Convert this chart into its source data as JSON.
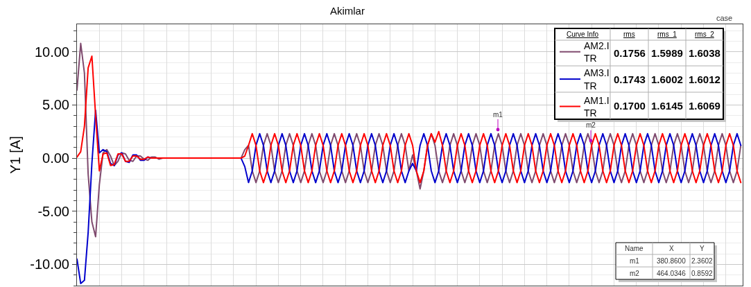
{
  "chart_data": {
    "type": "line",
    "title": "Akimlar",
    "ylabel": "Y1 [A]",
    "categories": [
      null,
      null,
      null,
      null,
      null,
      null,
      null,
      null,
      null,
      null,
      null,
      null,
      null,
      null,
      null,
      null,
      null,
      null,
      null,
      null,
      null,
      null,
      null,
      null,
      null,
      null,
      null,
      null,
      null,
      null,
      null,
      null,
      null,
      null,
      null,
      null,
      null,
      null,
      null,
      null,
      null,
      null,
      null,
      null,
      null,
      null,
      null,
      null,
      null,
      null,
      null,
      null,
      null,
      null,
      null,
      null,
      null,
      null,
      null,
      null,
      null,
      null,
      null,
      null,
      null,
      null,
      null,
      null,
      null,
      null,
      null,
      null,
      null,
      null,
      null,
      null,
      null,
      null,
      null,
      null,
      null,
      null,
      null,
      null,
      null,
      null,
      null,
      null,
      null,
      null,
      null,
      null,
      null,
      null,
      null,
      null,
      null,
      null,
      null,
      null,
      null,
      null,
      null,
      null,
      null,
      null,
      null,
      null,
      null,
      null,
      null,
      null,
      null,
      null,
      null,
      null,
      null,
      null,
      null,
      null,
      null,
      null,
      null,
      null,
      null,
      null,
      null,
      null,
      null,
      null,
      null,
      null,
      null,
      null,
      null,
      null,
      null,
      null,
      null,
      null,
      null,
      null,
      null,
      null,
      null,
      null,
      null,
      null,
      null,
      null,
      null,
      null,
      null,
      null,
      null,
      null,
      null,
      null,
      null,
      null,
      null,
      null,
      null,
      null,
      null,
      null,
      null,
      null,
      null,
      null,
      null,
      null,
      null,
      null,
      null,
      null,
      null,
      null,
      null
    ],
    "series": [
      {
        "name": "AM2.I\nTR",
        "color": "#7f4a6e",
        "values": [
          6.4,
          10.8,
          8.0,
          -1.5,
          -6.0,
          -7.4,
          -2.5,
          0.5,
          0.8,
          0.2,
          -0.7,
          -0.3,
          0.5,
          0.4,
          -0.2,
          -0.3,
          0.2,
          0.2,
          -0.1,
          -0.2,
          0.1,
          0.1,
          -0.1,
          0,
          0,
          0,
          0,
          0,
          0,
          0,
          0,
          0,
          0,
          0,
          0,
          0,
          0,
          0,
          0,
          0,
          0,
          0,
          0,
          0,
          0,
          0.8,
          1.2,
          -1.2,
          -2.3,
          -1.2,
          1.2,
          2.3,
          1.2,
          -1.2,
          -2.3,
          -1.2,
          1.2,
          2.3,
          1.2,
          -1.2,
          -2.3,
          -1.2,
          1.2,
          2.3,
          1.2,
          -1.2,
          -2.3,
          -1.2,
          1.2,
          2.3,
          1.2,
          -1.2,
          -2.3,
          -1.2,
          1.2,
          2.3,
          1.2,
          -1.2,
          -2.3,
          -1.2,
          1.2,
          2.3,
          1.2,
          -1.2,
          -2.3,
          -1.2,
          1.2,
          2.3,
          1.2,
          -1.2,
          0.3,
          -1.2,
          -2.9,
          -1.2,
          1.2,
          2.3,
          1.2,
          -1.2,
          -2.3,
          -1.2,
          1.2,
          2.3,
          1.2,
          -1.2,
          -2.3,
          -1.2,
          1.2,
          2.3,
          1.2,
          -1.2,
          -2.3,
          -1.2,
          1.2,
          2.3,
          1.2,
          -1.2,
          -2.3,
          -1.2,
          1.2,
          2.3,
          1.2,
          -1.2,
          -2.3,
          -1.2,
          1.2,
          2.3,
          1.2,
          -1.2,
          -2.3,
          -1.2,
          1.2,
          2.3,
          1.2,
          -1.2,
          -2.3,
          -1.2,
          1.2,
          2.3,
          1.2,
          -1.2,
          -2.3,
          -1.2,
          1.2,
          2.3,
          1.2,
          -1.2,
          -2.3,
          -1.2,
          1.2,
          2.3,
          1.2,
          -1.2,
          -2.3,
          -1.2,
          1.2,
          2.3,
          1.2,
          -1.2,
          -2.3,
          -1.2,
          1.2,
          2.3,
          1.2,
          -1.2,
          -2.3,
          -1.2,
          1.2,
          2.3,
          1.2,
          -1.2,
          -2.3,
          -1.2,
          1.2,
          2.3,
          1.2,
          -1.2,
          -2.3,
          -1.2,
          1.2
        ]
      },
      {
        "name": "AM3.I\nTR",
        "color": "#0000cc",
        "values": [
          -9.5,
          -11.8,
          -11.5,
          -7.0,
          -0.5,
          4.5,
          0.5,
          0.8,
          0.6,
          -0.5,
          -0.7,
          0.3,
          0.5,
          -0.3,
          -0.4,
          0.3,
          0.3,
          -0.2,
          -0.2,
          0.1,
          0,
          0,
          0,
          0,
          0,
          0,
          0,
          0,
          0,
          0,
          0,
          0,
          0,
          0,
          0,
          0,
          0,
          0,
          0,
          0,
          0,
          0,
          0,
          0,
          0,
          -0.8,
          -2.3,
          -1.2,
          1.2,
          2.3,
          1.2,
          -1.2,
          -2.3,
          -1.2,
          1.2,
          2.3,
          1.2,
          -1.2,
          -2.3,
          -1.2,
          1.2,
          2.3,
          1.2,
          -1.2,
          -2.3,
          -1.2,
          1.2,
          2.3,
          1.2,
          -1.2,
          -2.3,
          -1.2,
          1.2,
          2.3,
          1.2,
          -1.2,
          -2.3,
          -1.2,
          1.2,
          2.3,
          1.2,
          -1.2,
          -2.3,
          -1.2,
          1.2,
          2.3,
          1.2,
          -1.2,
          -2.3,
          -1.2,
          -0.5,
          -1.2,
          1.2,
          2.3,
          1.2,
          -1.2,
          -2.3,
          -1.2,
          1.2,
          2.3,
          1.2,
          -1.2,
          -2.3,
          -1.2,
          1.2,
          2.3,
          1.2,
          -1.2,
          -2.3,
          -1.2,
          1.2,
          2.3,
          1.2,
          -1.2,
          -2.3,
          -1.2,
          1.2,
          2.3,
          1.2,
          -1.2,
          -2.3,
          -1.2,
          1.2,
          2.3,
          1.2,
          -1.2,
          -2.3,
          -1.2,
          1.2,
          2.3,
          1.2,
          -1.2,
          -2.3,
          -1.2,
          1.2,
          2.3,
          1.2,
          -1.2,
          -2.3,
          -1.2,
          1.2,
          2.3,
          1.2,
          -1.2,
          -2.3,
          -1.2,
          1.2,
          2.3,
          1.2,
          -1.2,
          -2.3,
          -1.2,
          1.2,
          2.3,
          1.2,
          -1.2,
          -2.3,
          -1.2,
          1.2,
          2.3,
          1.2,
          -1.2,
          -2.3,
          -1.2,
          1.2,
          2.3,
          1.2,
          -1.2,
          -2.3,
          -1.2,
          1.2,
          2.3,
          1.2,
          -1.2,
          -2.3,
          -1.2,
          1.2,
          2.3,
          1.2
        ]
      },
      {
        "name": "AM1.I\nTR",
        "color": "#ff0000",
        "values": [
          0.1,
          0.6,
          3.0,
          8.5,
          9.6,
          4.0,
          -1.2,
          0.4,
          0.5,
          -0.7,
          -0.6,
          0.4,
          0.4,
          -0.3,
          -0.3,
          0.2,
          0.2,
          -0.1,
          -0.1,
          0.1,
          0,
          0,
          0,
          0,
          0,
          0,
          0,
          0,
          0,
          0,
          0,
          0,
          0,
          0,
          0,
          0,
          0,
          0,
          0,
          0,
          0,
          0,
          0,
          0,
          0,
          0.2,
          1.2,
          2.3,
          1.2,
          -1.2,
          -2.3,
          -1.2,
          1.2,
          2.3,
          1.2,
          -1.2,
          -2.3,
          -1.2,
          1.2,
          2.3,
          1.2,
          -1.2,
          -2.3,
          -1.2,
          1.2,
          2.3,
          1.2,
          -1.2,
          -2.3,
          -1.2,
          1.2,
          2.3,
          1.2,
          -1.2,
          -2.3,
          -1.2,
          1.2,
          2.3,
          1.2,
          -1.2,
          -2.3,
          -1.2,
          1.2,
          2.3,
          1.2,
          -1.2,
          -2.3,
          -1.2,
          1.2,
          2.3,
          1.2,
          -1.2,
          -2.3,
          -1.2,
          1.2,
          2.3,
          1.5,
          2.5,
          1.2,
          -1.2,
          -2.3,
          -1.2,
          1.2,
          2.3,
          1.2,
          -1.2,
          -2.3,
          -1.2,
          1.2,
          2.3,
          1.2,
          -1.2,
          -2.3,
          -1.2,
          1.2,
          2.3,
          1.2,
          -1.2,
          -2.3,
          -1.2,
          1.2,
          2.3,
          1.2,
          -1.2,
          -2.3,
          -1.2,
          1.2,
          2.3,
          1.2,
          -1.2,
          -2.3,
          -1.2,
          1.2,
          2.3,
          1.2,
          -1.2,
          -2.3,
          -1.2,
          1.2,
          2.3,
          1.2,
          -1.2,
          -2.3,
          -1.2,
          1.2,
          2.3,
          1.2,
          -1.2,
          -2.3,
          -1.2,
          1.2,
          2.3,
          1.2,
          -1.2,
          -2.3,
          -1.2,
          1.2,
          2.3,
          1.2,
          -1.2,
          -2.3,
          -1.2,
          1.2,
          2.3,
          1.2,
          -1.2,
          -2.3,
          -1.2,
          1.2,
          2.3,
          1.2,
          -1.2,
          -2.3,
          -1.2,
          1.2,
          2.3,
          1.2,
          -1.2,
          -2.3
        ]
      }
    ],
    "ylim": [
      -12,
      12.6
    ],
    "yticks": [
      {
        "value": -10,
        "label": "-10.00"
      },
      {
        "value": -5,
        "label": "-5.00"
      },
      {
        "value": 0,
        "label": "0.00"
      },
      {
        "value": 5,
        "label": "5.00"
      },
      {
        "value": 10,
        "label": "10.00"
      }
    ],
    "tick_labels": "y",
    "grid": true,
    "legend": "top right",
    "marker": "none",
    "line_style": "solid",
    "annotations": [
      "Curve Info",
      "rms",
      "rms_1",
      "rms_2",
      "0.1756",
      "1.5989",
      "1.6038",
      "0.1743",
      "1.6002",
      "1.6012",
      "0.1700",
      "1.6145",
      "1.6069",
      "Name",
      "X",
      "Y",
      "m1",
      "380.8600",
      "2.3602",
      "m2",
      "464.0346",
      "0.8592",
      "case",
      "m1",
      "m2"
    ]
  }
}
